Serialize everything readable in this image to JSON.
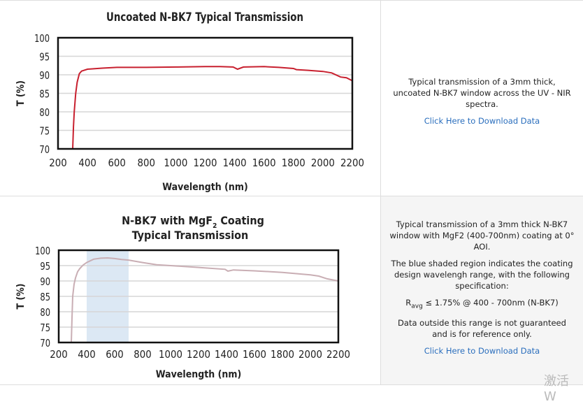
{
  "chart_data": [
    {
      "type": "line",
      "title": "Uncoated N-BK7 Typical Transmission",
      "xlabel": "Wavelength (nm)",
      "ylabel": "T (%)",
      "xlim": [
        200,
        2200
      ],
      "ylim": [
        70,
        100
      ],
      "xticks": [
        "200",
        "400",
        "600",
        "800",
        "1000",
        "1200",
        "1400",
        "1600",
        "1800",
        "2000",
        "2200"
      ],
      "yticks": [
        "70",
        "75",
        "80",
        "85",
        "90",
        "95",
        "100"
      ],
      "grid": true,
      "line_color": "#c8202f",
      "series": [
        {
          "x": [
            300,
            305,
            310,
            320,
            330,
            345,
            360,
            400,
            500,
            600,
            800,
            1000,
            1200,
            1300,
            1390,
            1420,
            1460,
            1600,
            1700,
            1800,
            1820,
            1900,
            2000,
            2060,
            2120,
            2160,
            2200
          ],
          "y": [
            70,
            76,
            80,
            85,
            88,
            90.3,
            91,
            91.5,
            91.8,
            92,
            92,
            92.1,
            92.2,
            92.2,
            92.1,
            91.5,
            92.1,
            92.2,
            92,
            91.7,
            91.4,
            91.2,
            90.9,
            90.5,
            89.4,
            89.2,
            88.4
          ]
        }
      ]
    },
    {
      "type": "line",
      "title_line1": "N-BK7 with MgF",
      "title_sub": "2",
      "title_line1_end": " Coating",
      "title_line2": "Typical Transmission",
      "xlabel": "Wavelength (nm)",
      "ylabel": "T (%)",
      "xlim": [
        200,
        2200
      ],
      "ylim": [
        70,
        100
      ],
      "xticks": [
        "200",
        "400",
        "600",
        "800",
        "1000",
        "1200",
        "1400",
        "1600",
        "1800",
        "2000",
        "2200"
      ],
      "yticks": [
        "70",
        "75",
        "80",
        "85",
        "90",
        "95",
        "100"
      ],
      "grid": true,
      "line_color": "#c9aeb4",
      "shaded_region": {
        "from": 400,
        "to": 700,
        "color": "#dce8f4"
      },
      "series": [
        {
          "x": [
            290,
            295,
            300,
            310,
            320,
            335,
            350,
            375,
            400,
            450,
            500,
            550,
            600,
            650,
            700,
            800,
            900,
            1000,
            1200,
            1390,
            1410,
            1450,
            1600,
            1800,
            2000,
            2060,
            2120,
            2200
          ],
          "y": [
            70,
            78,
            85,
            89,
            91,
            93,
            94,
            95.2,
            96,
            97.1,
            97.4,
            97.5,
            97.3,
            97,
            96.8,
            96,
            95.3,
            95,
            94.4,
            93.8,
            93.2,
            93.6,
            93.3,
            92.8,
            92,
            91.6,
            90.7,
            90
          ]
        }
      ]
    }
  ],
  "descriptions": [
    {
      "paragraphs": [
        "Typical transmission of a 3mm thick, uncoated N-BK7 window across the UV - NIR spectra."
      ],
      "link": "Click Here to Download Data"
    },
    {
      "paragraphs": [
        "Typical transmission of a 3mm thick N-BK7 window with MgF2 (400-700nm) coating at 0° AOI.",
        "The blue shaded region indicates the coating design wavelengh range, with the following specification:"
      ],
      "spec_r": "R",
      "spec_sub": "avg",
      "spec_rest": " ≤ 1.75% @ 400 - 700nm (N-BK7)",
      "note": "Data outside this range is not guaranteed and is for reference only.",
      "link": "Click Here to Download Data"
    }
  ],
  "watermark": "激活 W"
}
